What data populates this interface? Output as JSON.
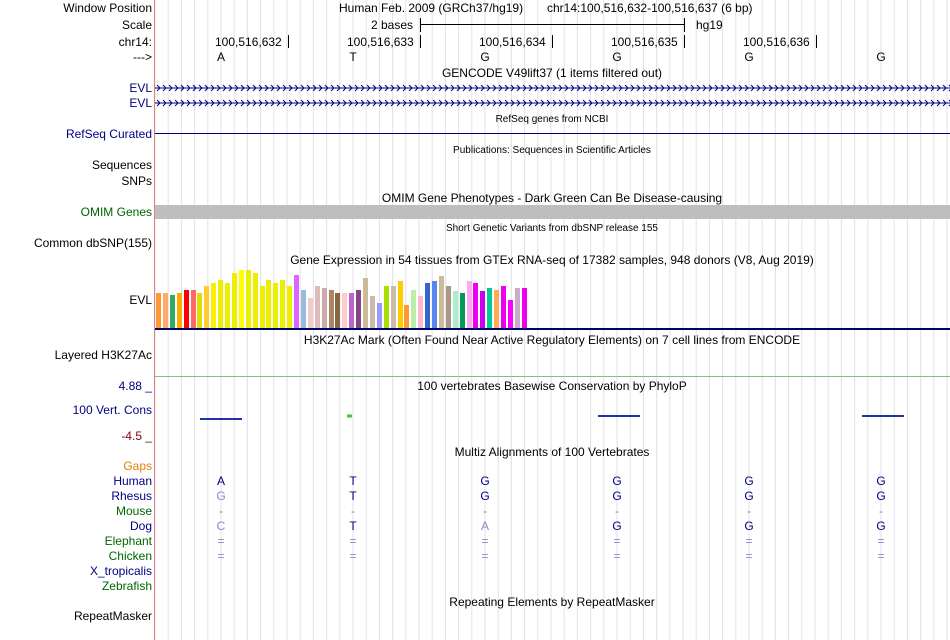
{
  "labels": {
    "window_position": "Window Position",
    "scale": "Scale",
    "chrom": "chr14:",
    "strand": "--->",
    "evl1": "EVL",
    "evl2": "EVL",
    "refseq": "RefSeq Curated",
    "sequences": "Sequences",
    "snps": "SNPs",
    "omim": "OMIM Genes",
    "common_dbsnp": "Common dbSNP(155)",
    "gtex_evl": "EVL",
    "h3k27ac": "Layered H3K27Ac",
    "cons_max": "4.88 _",
    "cons_track": "100 Vert. Cons",
    "cons_min": "-4.5 _",
    "gaps": "Gaps",
    "human": "Human",
    "rhesus": "Rhesus",
    "mouse": "Mouse",
    "dog": "Dog",
    "elephant": "Elephant",
    "chicken": "Chicken",
    "x_tropicalis": "X_tropicalis",
    "zebrafish": "Zebrafish",
    "repeatmasker": "RepeatMasker"
  },
  "header": {
    "assembly": "Human Feb. 2009 (GRCh37/hg19)",
    "position": "chr14:100,516,632-100,516,637 (6 bp)",
    "scale_text": "2 bases",
    "db": "hg19"
  },
  "coords": [
    "100,516,632",
    "100,516,633",
    "100,516,634",
    "100,516,635",
    "100,516,636"
  ],
  "bases": [
    "A",
    "T",
    "G",
    "G",
    "G",
    "G"
  ],
  "titles": {
    "gencode": "GENCODE V49lift37 (1 items filtered out)",
    "refseq": "RefSeq genes from NCBI",
    "publications": "Publications: Sequences in Scientific Articles",
    "omim": "OMIM Gene Phenotypes - Dark Green Can Be Disease-causing",
    "dbsnp": "Short Genetic Variants from dbSNP release 155",
    "gtex": "Gene Expression in 54 tissues from GTEx RNA-seq of 17382 samples, 948 donors (V8, Aug 2019)",
    "h3k27ac": "H3K27Ac Mark (Often Found Near Active Regulatory Elements) on 7 cell lines from ENCODE",
    "phylop": "100 vertebrates Basewise Conservation by PhyloP",
    "multiz": "Multiz Alignments of 100 Vertebrates",
    "repeatmasker": "Repeating Elements by RepeatMasker"
  },
  "alignment": {
    "human": [
      "A",
      "T",
      "G",
      "G",
      "G",
      "G"
    ],
    "rhesus": [
      "G",
      "T",
      "G",
      "G",
      "G",
      "G"
    ],
    "mouse": [
      "-",
      "-",
      "-",
      "-",
      "-",
      "-"
    ],
    "dog": [
      "C",
      "T",
      "A",
      "G",
      "G",
      "G"
    ],
    "elephant": [
      "=",
      "=",
      "=",
      "=",
      "=",
      "="
    ],
    "chicken": [
      "=",
      "=",
      "=",
      "=",
      "=",
      "="
    ]
  },
  "colors": {
    "track_blue": "#000080",
    "omim_gray": "#bebebe",
    "label_green": "#006400",
    "gaps_orange": "#e08000",
    "divider": "#e08080"
  },
  "gtex_values": [
    0.35,
    0.35,
    0.33,
    0.35,
    0.38,
    0.38,
    0.35,
    0.42,
    0.45,
    0.48,
    0.45,
    0.55,
    0.58,
    0.58,
    0.55,
    0.42,
    0.48,
    0.45,
    0.48,
    0.42,
    0.53,
    0.38,
    0.3,
    0.42,
    0.4,
    0.38,
    0.35,
    0.35,
    0.35,
    0.38,
    0.5,
    0.32,
    0.25,
    0.42,
    0.42,
    0.47,
    0.23,
    0.38,
    0.32,
    0.45,
    0.47,
    0.52,
    0.42,
    0.37,
    0.35,
    0.47,
    0.45,
    0.37,
    0.4,
    0.38,
    0.42,
    0.28,
    0.4,
    0.4
  ],
  "gtex_colors": [
    "#ff9933",
    "#ffaa66",
    "#33aa66",
    "#ffaa00",
    "#ff0000",
    "#ff6666",
    "#dddd00",
    "#ffcc33",
    "#ffee00",
    "#eeee00",
    "#eeee00",
    "#eeee00",
    "#ffff00",
    "#eeee00",
    "#eeee00",
    "#eeee00",
    "#eeee00",
    "#eeee00",
    "#eeee00",
    "#eeee00",
    "#dd66ff",
    "#99bbdd",
    "#eecccc",
    "#ddbbbb",
    "#ccaaaa",
    "#aa8866",
    "#886644",
    "#ffcccc",
    "#bb66cc",
    "#884488",
    "#ccbb99",
    "#ccbbaa",
    "#9999ff",
    "#aadd00",
    "#ccbbaa",
    "#ffcc00",
    "#ff9933",
    "#bbeeaa",
    "#ffbbcc",
    "#3366cc",
    "#5588ee",
    "#ccbb99",
    "#aa9988",
    "#aaeecc",
    "#009955",
    "#ffaaee",
    "#ee00ee",
    "#cc00ee",
    "#00cc99",
    "#ffaa55",
    "#ee00ee",
    "#ff00ff",
    "#ccaacc",
    "#ee00ee"
  ]
}
